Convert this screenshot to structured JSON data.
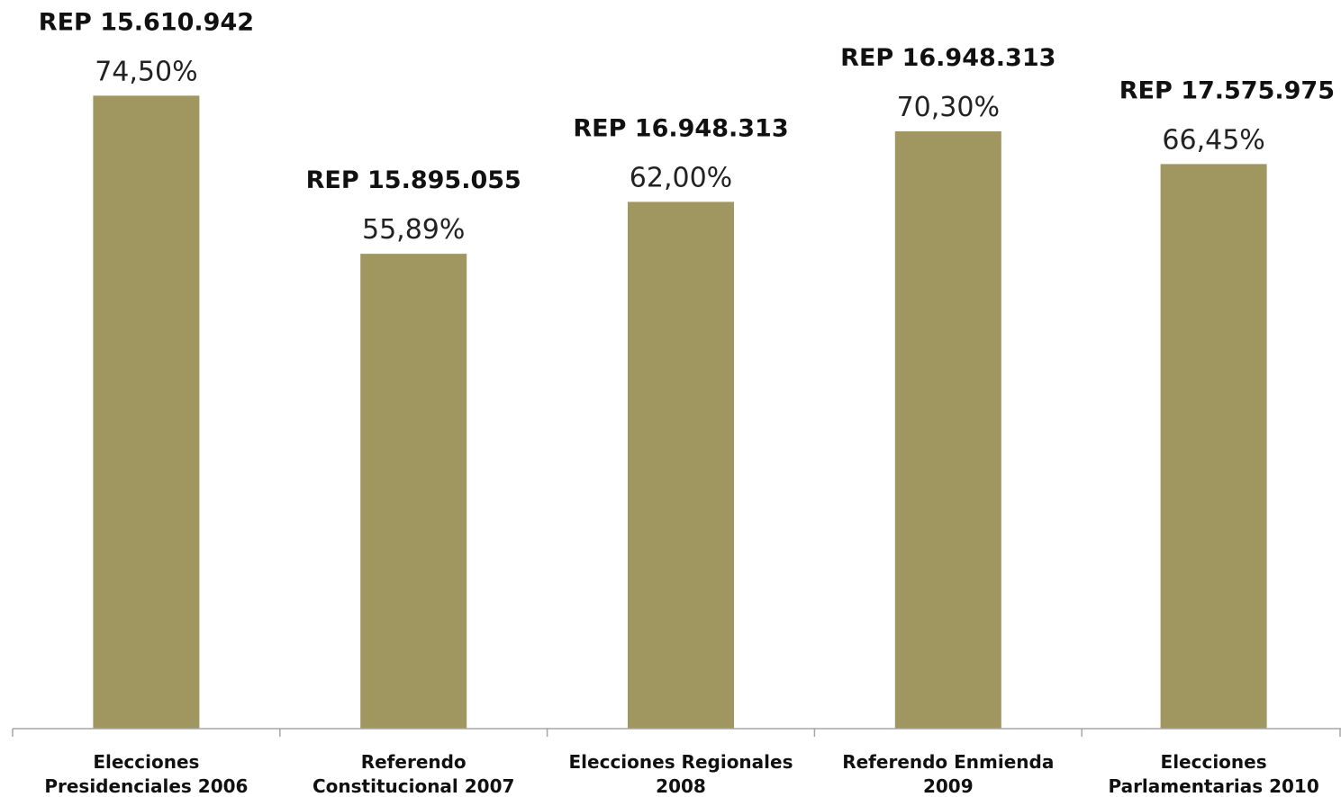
{
  "chart_data": {
    "type": "bar",
    "title": "",
    "xlabel": "",
    "ylabel": "",
    "ylim": [
      0,
      90
    ],
    "grid": false,
    "legend": "none",
    "bar_color": "#a09660",
    "categories": [
      [
        "Elecciones",
        "Presidenciales 2006"
      ],
      [
        "Referendo",
        "Constitucional 2007"
      ],
      [
        "Elecciones Regionales",
        "2008"
      ],
      [
        "Referendo Enmienda",
        "2009"
      ],
      [
        "Elecciones",
        "Parlamentarias 2010"
      ]
    ],
    "values": [
      74.5,
      55.89,
      62.0,
      70.3,
      66.45
    ],
    "value_labels": [
      "74,50%",
      "55,89%",
      "62,00%",
      "70,30%",
      "66,45%"
    ],
    "rep_labels": [
      "REP 15.610.942",
      "REP 15.895.055",
      "REP 16.948.313",
      "REP 16.948.313",
      "REP 17.575.975"
    ]
  }
}
